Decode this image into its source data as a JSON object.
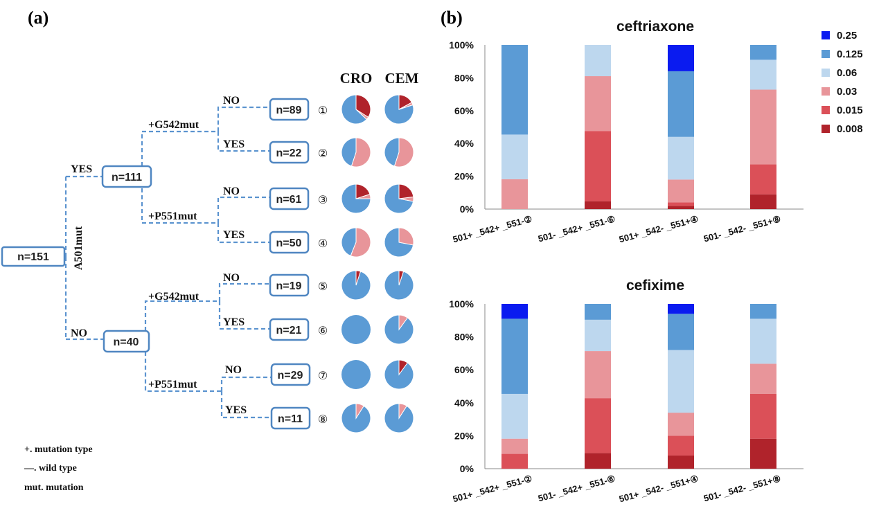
{
  "panel_labels": {
    "a": "(a)",
    "b": "(b)"
  },
  "colors": {
    "0.25": "#0a1bf0",
    "0.125": "#5b9bd5",
    "0.06": "#bdd7ee",
    "0.03": "#e8959a",
    "0.015": "#db5058",
    "0.008": "#b0232b",
    "edge": "#5b93cf"
  },
  "tree": {
    "root": {
      "label": "n=151"
    },
    "root_split_label": "A501mut",
    "yes_label": "YES",
    "no_label": "NO",
    "level1": [
      {
        "id": "yes",
        "branch": "YES",
        "label": "n=111",
        "split": "+G542mut / +P551mut"
      },
      {
        "id": "no",
        "branch": "NO",
        "label": "n=40",
        "split": "+G542mut / +P551mut"
      }
    ],
    "split_labels": {
      "yes_top": "+G542mut",
      "yes_bottom": "+P551mut",
      "no_top": "+G542mut",
      "no_bottom": "+P551mut"
    },
    "column_headers": {
      "cro": "CRO",
      "cem": "CEM"
    },
    "leaves": [
      {
        "branch": "NO",
        "label": "n=89",
        "marker": "①",
        "cro": {
          "blue": 0.63,
          "light": 0.03,
          "dark": 0.34
        },
        "cem": {
          "blue": 0.8,
          "light": 0.03,
          "dark": 0.17
        }
      },
      {
        "branch": "YES",
        "label": "n=22",
        "marker": "②",
        "cro": {
          "blue": 0.45,
          "light": 0.55,
          "dark": 0.0
        },
        "cem": {
          "blue": 0.45,
          "light": 0.55,
          "dark": 0.0
        }
      },
      {
        "branch": "NO",
        "label": "n=61",
        "marker": "③",
        "cro": {
          "blue": 0.75,
          "light": 0.05,
          "dark": 0.2
        },
        "cem": {
          "blue": 0.72,
          "light": 0.05,
          "dark": 0.23
        }
      },
      {
        "branch": "YES",
        "label": "n=50",
        "marker": "④",
        "cro": {
          "blue": 0.44,
          "light": 0.56,
          "dark": 0.0
        },
        "cem": {
          "blue": 0.72,
          "light": 0.28,
          "dark": 0.0
        }
      },
      {
        "branch": "NO",
        "label": "n=19",
        "marker": "⑤",
        "cro": {
          "blue": 0.95,
          "light": 0.0,
          "dark": 0.05
        },
        "cem": {
          "blue": 0.95,
          "light": 0.0,
          "dark": 0.05
        }
      },
      {
        "branch": "YES",
        "label": "n=21",
        "marker": "⑥",
        "cro": {
          "blue": 1.0,
          "light": 0.0,
          "dark": 0.0
        },
        "cem": {
          "blue": 0.9,
          "light": 0.1,
          "dark": 0.0
        }
      },
      {
        "branch": "NO",
        "label": "n=29",
        "marker": "⑦",
        "cro": {
          "blue": 1.0,
          "light": 0.0,
          "dark": 0.0
        },
        "cem": {
          "blue": 0.9,
          "light": 0.0,
          "dark": 0.1
        }
      },
      {
        "branch": "YES",
        "label": "n=11",
        "marker": "⑧",
        "cro": {
          "blue": 0.91,
          "light": 0.09,
          "dark": 0.0
        },
        "cem": {
          "blue": 0.91,
          "light": 0.09,
          "dark": 0.0
        }
      }
    ]
  },
  "notes": [
    "+. mutation type",
    "—. wild type",
    "mut. mutation"
  ],
  "chart_data": [
    {
      "type": "bar",
      "stacked": true,
      "title": "ceftriaxone",
      "categories": [
        "501+ _542+ _551-②",
        "501- _542+ _551-⑥",
        "501+ _542- _551+④",
        "501- _542- _551+⑧"
      ],
      "yticks": [
        "0%",
        "20%",
        "40%",
        "60%",
        "80%",
        "100%"
      ],
      "ylim": [
        0,
        100
      ],
      "series": [
        {
          "name": "0.008",
          "values": [
            0,
            4.8,
            2,
            9
          ]
        },
        {
          "name": "0.015",
          "values": [
            0,
            42.8,
            2,
            18.3
          ]
        },
        {
          "name": "0.03",
          "values": [
            18.2,
            33.4,
            14,
            45.5
          ]
        },
        {
          "name": "0.06",
          "values": [
            27.2,
            19,
            26,
            18.2
          ]
        },
        {
          "name": "0.125",
          "values": [
            54.6,
            0,
            40,
            9
          ]
        },
        {
          "name": "0.25",
          "values": [
            0,
            0,
            16,
            0
          ]
        }
      ]
    },
    {
      "type": "bar",
      "stacked": true,
      "title": "cefixime",
      "categories": [
        "501+ _542+ _551-②",
        "501- _542+ _551-⑥",
        "501+ _542- _551+④",
        "501- _542- _551+⑧"
      ],
      "yticks": [
        "0%",
        "20%",
        "40%",
        "60%",
        "80%",
        "100%"
      ],
      "ylim": [
        0,
        100
      ],
      "series": [
        {
          "name": "0.008",
          "values": [
            0,
            9.5,
            8,
            18.2
          ]
        },
        {
          "name": "0.015",
          "values": [
            9,
            33.3,
            12,
            27.3
          ]
        },
        {
          "name": "0.03",
          "values": [
            9.2,
            28.6,
            14,
            18.2
          ]
        },
        {
          "name": "0.06",
          "values": [
            27.2,
            19,
            38,
            27.3
          ]
        },
        {
          "name": "0.125",
          "values": [
            45.6,
            9.6,
            22,
            9
          ]
        },
        {
          "name": "0.25",
          "values": [
            9,
            0,
            6,
            0
          ]
        }
      ]
    }
  ],
  "legend": {
    "entries": [
      "0.25",
      "0.125",
      "0.06",
      "0.03",
      "0.015",
      "0.008"
    ]
  }
}
